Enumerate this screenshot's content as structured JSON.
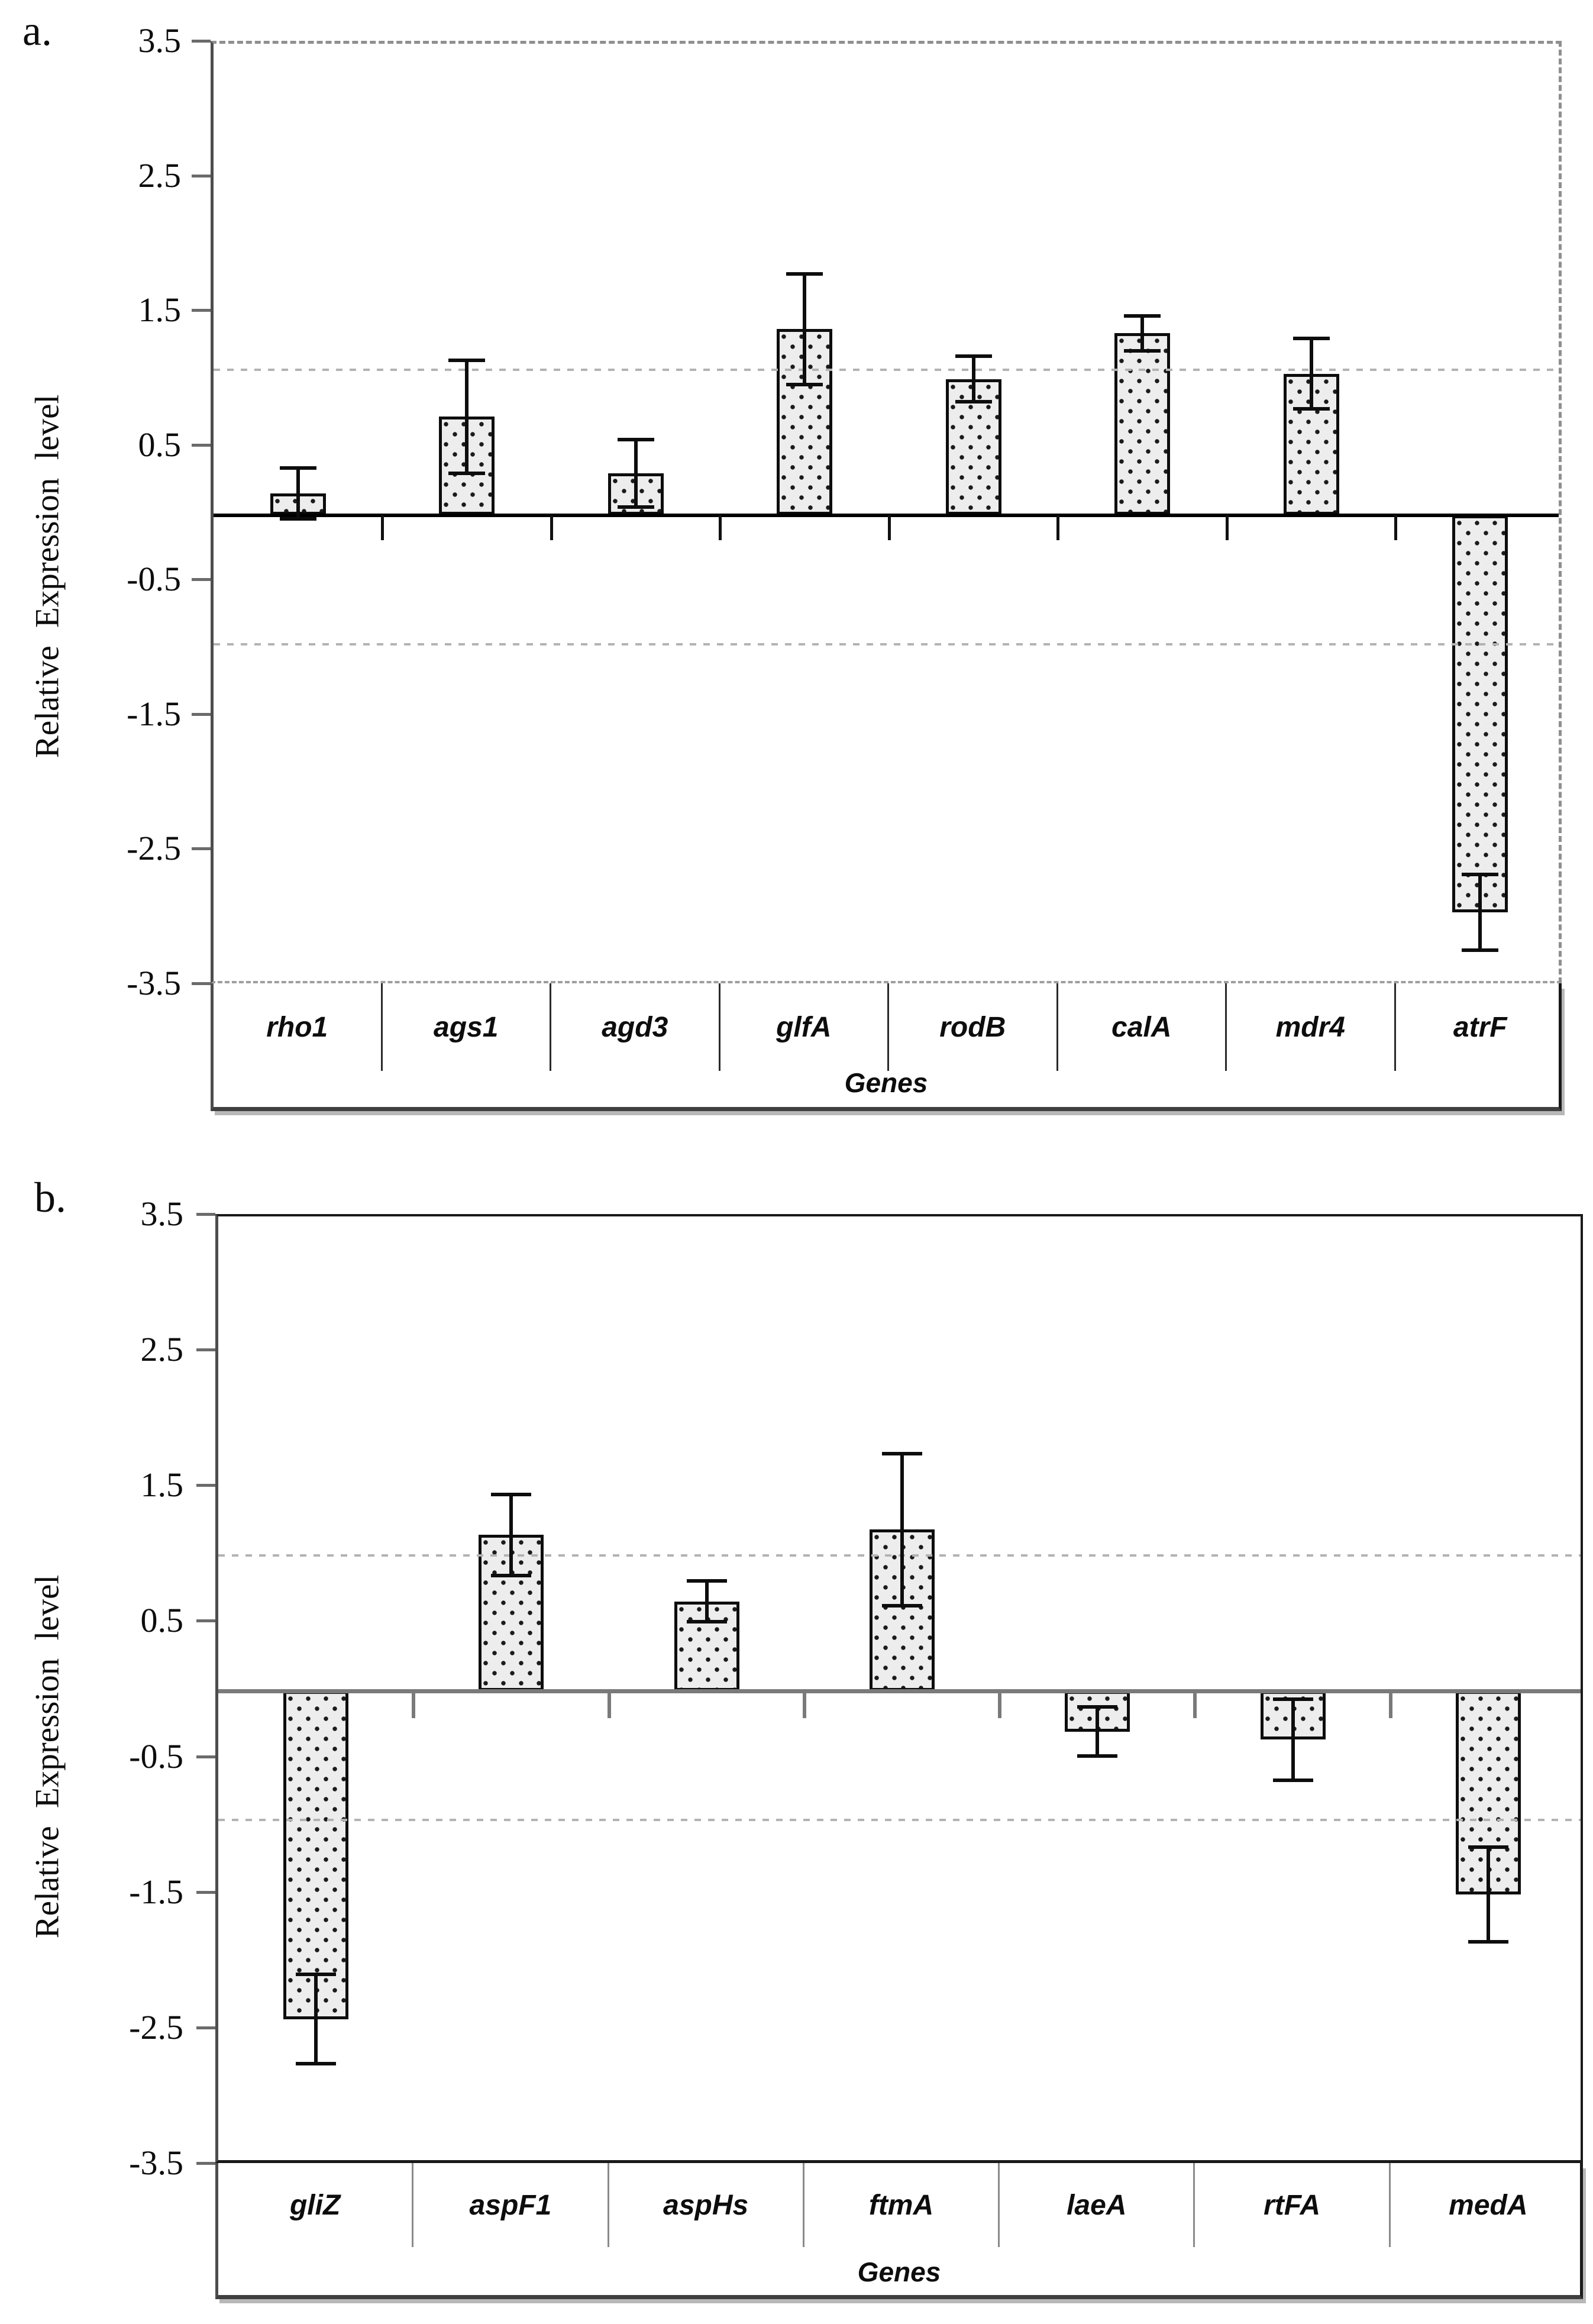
{
  "figure": {
    "background": "#ffffff",
    "colors": {
      "text": "#0d0d0d",
      "axis": "#4d4d4d",
      "tick": "#6b6b6b",
      "bar_fill": "#ededed",
      "bar_dot": "#1b1b1b",
      "bar_border": "#0d0d0d",
      "error_bar": "#0d0d0d",
      "reference_line": "#b3b3b3",
      "dashed_border": "#8f8f8f",
      "solid_border": "#1a1a1a",
      "baseline_panel_a": "#000000",
      "baseline_panel_b": "#7a7a7a",
      "bottom_shadow": "#b8b8b8"
    }
  },
  "chart_data": [
    {
      "type": "bar",
      "panel_label": "a.",
      "ylabel": "Relative  Expression  level",
      "xlabel": "Genes",
      "ylim": [
        -3.5,
        3.5
      ],
      "yticks": [
        3.5,
        2.5,
        1.5,
        0.5,
        -0.5,
        -1.5,
        -2.5,
        -3.5
      ],
      "ytick_labels": [
        "3.5",
        "2.5",
        "1.5",
        "0.5",
        "-0.5",
        "-1.5",
        "-2.5",
        "-3.5"
      ],
      "categories": [
        "rho1",
        "ags1",
        "agd3",
        "glfA",
        "rodB",
        "calA",
        "mdr4",
        "atrF"
      ],
      "values": [
        0.16,
        0.73,
        0.31,
        1.38,
        1.01,
        1.35,
        1.05,
        -2.95
      ],
      "errors": [
        0.19,
        0.42,
        0.25,
        0.41,
        0.17,
        0.13,
        0.26,
        0.28
      ],
      "reference_lines": [
        1.08,
        -0.96
      ],
      "grid": false,
      "legend": "none"
    },
    {
      "type": "bar",
      "panel_label": "b.",
      "ylabel": "Relative  Expression  level",
      "xlabel": "Genes",
      "ylim": [
        -3.5,
        3.5
      ],
      "yticks": [
        3.5,
        2.5,
        1.5,
        0.5,
        -0.5,
        -1.5,
        -2.5,
        -3.5
      ],
      "ytick_labels": [
        "3.5",
        "2.5",
        "1.5",
        "0.5",
        "-0.5",
        "-1.5",
        "-2.5",
        "-3.5"
      ],
      "categories": [
        "gliZ",
        "aspF1",
        "aspHs",
        "ftmA",
        "laeA",
        "rtFA",
        "medA"
      ],
      "values": [
        -2.42,
        1.15,
        0.66,
        1.19,
        -0.3,
        -0.36,
        -1.5
      ],
      "errors": [
        0.33,
        0.3,
        0.15,
        0.56,
        0.18,
        0.3,
        0.35
      ],
      "reference_lines": [
        1.0,
        -0.95
      ],
      "grid": false,
      "legend": "none"
    }
  ]
}
